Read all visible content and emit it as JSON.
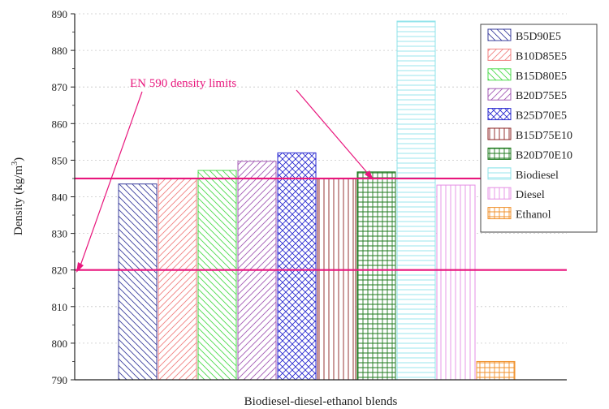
{
  "chart_data": {
    "type": "bar",
    "xlabel": "Biodiesel-diesel-ethanol blends",
    "ylabel": "Density (kg/m",
    "ylabel_sup": "3",
    "ylabel_close": ")",
    "ylim": [
      790,
      890
    ],
    "yticks": [
      790,
      800,
      810,
      820,
      830,
      840,
      850,
      860,
      870,
      880,
      890
    ],
    "grid": true,
    "legend_position": "top-right",
    "series": [
      {
        "name": "B5D90E5",
        "value": 843.5,
        "color": "#3b3f9e",
        "pattern": "diag-back"
      },
      {
        "name": "B10D85E5",
        "value": 845,
        "color": "#f08080",
        "pattern": "diag-fwd"
      },
      {
        "name": "B15D80E5",
        "value": 847.2,
        "color": "#4cdb4c",
        "pattern": "diag-back"
      },
      {
        "name": "B20D75E5",
        "value": 849.7,
        "color": "#a35ab5",
        "pattern": "diag-fwd"
      },
      {
        "name": "B25D70E5",
        "value": 852,
        "color": "#2a2ad0",
        "pattern": "crosshatch"
      },
      {
        "name": "B15D75E10",
        "value": 845,
        "color": "#8b2020",
        "pattern": "vertical"
      },
      {
        "name": "B20D70E10",
        "value": 846.8,
        "color": "#1e7a1e",
        "pattern": "grid"
      },
      {
        "name": "Biodiesel",
        "value": 888,
        "color": "#8fe3ea",
        "pattern": "horizontal"
      },
      {
        "name": "Diesel",
        "value": 843.2,
        "color": "#e58fe5",
        "pattern": "vertical"
      },
      {
        "name": "Ethanol",
        "value": 795,
        "color": "#f0902a",
        "pattern": "grid"
      }
    ],
    "limit_lines": [
      820,
      845
    ],
    "limit_color": "#e8177d",
    "annotation": "EN 590 density limits"
  }
}
